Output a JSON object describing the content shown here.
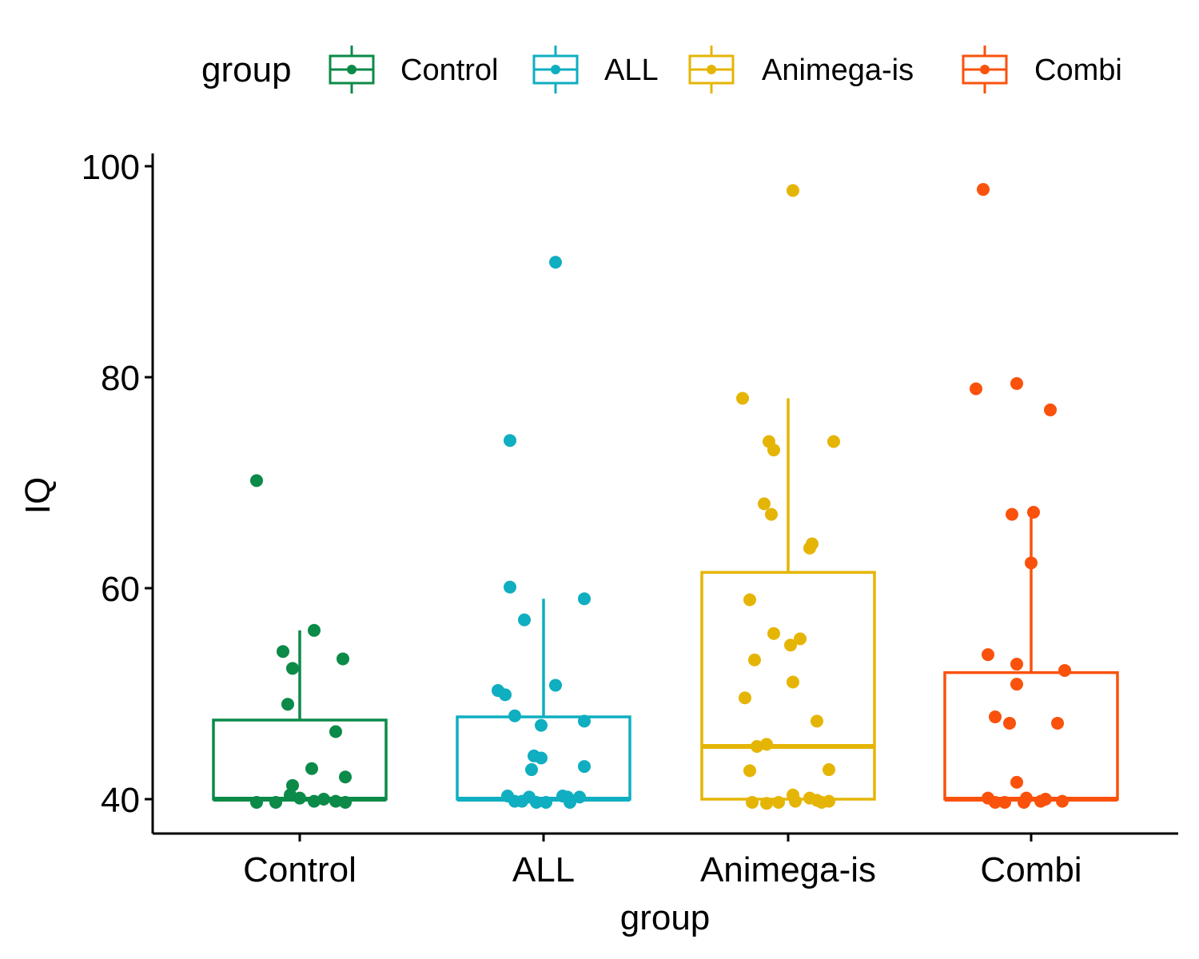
{
  "chart_data": {
    "type": "boxplot",
    "xlabel": "group",
    "ylabel": "IQ",
    "ylim": [
      37,
      101
    ],
    "yticks": [
      40,
      60,
      80,
      100
    ],
    "categories": [
      "Control",
      "ALL",
      "Animega-is",
      "Combi"
    ],
    "legend": {
      "title": "group",
      "position": "top",
      "entries": [
        "Control",
        "ALL",
        "Animega-is",
        "Combi"
      ]
    },
    "grid": false,
    "series": [
      {
        "name": "Control",
        "color": "#0B8A48",
        "box": {
          "q1": 40,
          "median": 40,
          "q3": 47.5,
          "whisker_low": 40,
          "whisker_high": 56
        },
        "points": [
          {
            "jitter": -0.18,
            "y": 70.2
          },
          {
            "jitter": 0.06,
            "y": 56.0
          },
          {
            "jitter": -0.07,
            "y": 54.0
          },
          {
            "jitter": 0.18,
            "y": 53.3
          },
          {
            "jitter": -0.03,
            "y": 52.4
          },
          {
            "jitter": -0.05,
            "y": 49.0
          },
          {
            "jitter": 0.15,
            "y": 46.4
          },
          {
            "jitter": 0.05,
            "y": 42.9
          },
          {
            "jitter": 0.19,
            "y": 42.1
          },
          {
            "jitter": -0.03,
            "y": 41.3
          },
          {
            "jitter": -0.04,
            "y": 40.4
          },
          {
            "jitter": 0.0,
            "y": 40.1
          },
          {
            "jitter": 0.1,
            "y": 40.0
          },
          {
            "jitter": -0.18,
            "y": 39.7
          },
          {
            "jitter": -0.1,
            "y": 39.7
          },
          {
            "jitter": 0.06,
            "y": 39.8
          },
          {
            "jitter": 0.15,
            "y": 39.8
          },
          {
            "jitter": 0.19,
            "y": 39.7
          }
        ]
      },
      {
        "name": "ALL",
        "color": "#0FAEC0",
        "box": {
          "q1": 40,
          "median": 40,
          "q3": 47.8,
          "whisker_low": 40,
          "whisker_high": 59
        },
        "points": [
          {
            "jitter": 0.05,
            "y": 90.9
          },
          {
            "jitter": -0.14,
            "y": 74.0
          },
          {
            "jitter": -0.14,
            "y": 60.1
          },
          {
            "jitter": 0.17,
            "y": 59.0
          },
          {
            "jitter": -0.08,
            "y": 57.0
          },
          {
            "jitter": 0.05,
            "y": 50.8
          },
          {
            "jitter": -0.19,
            "y": 50.3
          },
          {
            "jitter": -0.16,
            "y": 49.9
          },
          {
            "jitter": -0.12,
            "y": 47.9
          },
          {
            "jitter": 0.17,
            "y": 47.4
          },
          {
            "jitter": -0.01,
            "y": 47.0
          },
          {
            "jitter": -0.04,
            "y": 44.1
          },
          {
            "jitter": -0.01,
            "y": 43.9
          },
          {
            "jitter": 0.17,
            "y": 43.1
          },
          {
            "jitter": -0.05,
            "y": 42.8
          },
          {
            "jitter": -0.15,
            "y": 40.3
          },
          {
            "jitter": -0.06,
            "y": 40.2
          },
          {
            "jitter": 0.08,
            "y": 40.3
          },
          {
            "jitter": 0.1,
            "y": 40.2
          },
          {
            "jitter": 0.15,
            "y": 40.2
          },
          {
            "jitter": -0.12,
            "y": 39.8
          },
          {
            "jitter": -0.09,
            "y": 39.8
          },
          {
            "jitter": -0.03,
            "y": 39.7
          },
          {
            "jitter": 0.01,
            "y": 39.7
          },
          {
            "jitter": 0.11,
            "y": 39.7
          }
        ]
      },
      {
        "name": "Animega-is",
        "color": "#E5B505",
        "box": {
          "q1": 40,
          "median": 45,
          "q3": 61.5,
          "whisker_low": 40,
          "whisker_high": 78
        },
        "points": [
          {
            "jitter": 0.02,
            "y": 97.7
          },
          {
            "jitter": -0.19,
            "y": 78.0
          },
          {
            "jitter": -0.08,
            "y": 73.9
          },
          {
            "jitter": -0.06,
            "y": 73.1
          },
          {
            "jitter": 0.19,
            "y": 73.9
          },
          {
            "jitter": -0.1,
            "y": 68.0
          },
          {
            "jitter": -0.07,
            "y": 67.0
          },
          {
            "jitter": 0.1,
            "y": 64.2
          },
          {
            "jitter": 0.09,
            "y": 63.8
          },
          {
            "jitter": -0.16,
            "y": 58.9
          },
          {
            "jitter": -0.06,
            "y": 55.7
          },
          {
            "jitter": 0.05,
            "y": 55.2
          },
          {
            "jitter": 0.01,
            "y": 54.6
          },
          {
            "jitter": -0.14,
            "y": 53.2
          },
          {
            "jitter": 0.02,
            "y": 51.1
          },
          {
            "jitter": -0.18,
            "y": 49.6
          },
          {
            "jitter": 0.12,
            "y": 47.4
          },
          {
            "jitter": -0.09,
            "y": 45.2
          },
          {
            "jitter": -0.13,
            "y": 45.0
          },
          {
            "jitter": -0.16,
            "y": 42.7
          },
          {
            "jitter": 0.17,
            "y": 42.8
          },
          {
            "jitter": 0.02,
            "y": 40.4
          },
          {
            "jitter": 0.09,
            "y": 40.1
          },
          {
            "jitter": 0.03,
            "y": 39.8
          },
          {
            "jitter": -0.15,
            "y": 39.7
          },
          {
            "jitter": -0.09,
            "y": 39.6
          },
          {
            "jitter": -0.04,
            "y": 39.7
          },
          {
            "jitter": 0.12,
            "y": 39.9
          },
          {
            "jitter": 0.14,
            "y": 39.7
          },
          {
            "jitter": 0.17,
            "y": 39.8
          }
        ]
      },
      {
        "name": "Combi",
        "color": "#FA520C",
        "box": {
          "q1": 40,
          "median": 40,
          "q3": 52,
          "whisker_low": 40,
          "whisker_high": 67
        },
        "points": [
          {
            "jitter": -0.2,
            "y": 97.8
          },
          {
            "jitter": -0.23,
            "y": 78.9
          },
          {
            "jitter": -0.06,
            "y": 79.4
          },
          {
            "jitter": 0.08,
            "y": 76.9
          },
          {
            "jitter": -0.08,
            "y": 67.0
          },
          {
            "jitter": 0.01,
            "y": 67.2
          },
          {
            "jitter": 0.0,
            "y": 62.4
          },
          {
            "jitter": -0.18,
            "y": 53.7
          },
          {
            "jitter": -0.06,
            "y": 52.8
          },
          {
            "jitter": 0.14,
            "y": 52.2
          },
          {
            "jitter": -0.06,
            "y": 50.9
          },
          {
            "jitter": -0.15,
            "y": 47.8
          },
          {
            "jitter": -0.09,
            "y": 47.2
          },
          {
            "jitter": 0.11,
            "y": 47.2
          },
          {
            "jitter": -0.06,
            "y": 41.6
          },
          {
            "jitter": -0.18,
            "y": 40.1
          },
          {
            "jitter": -0.02,
            "y": 40.1
          },
          {
            "jitter": 0.06,
            "y": 40.0
          },
          {
            "jitter": -0.15,
            "y": 39.7
          },
          {
            "jitter": -0.11,
            "y": 39.7
          },
          {
            "jitter": -0.03,
            "y": 39.7
          },
          {
            "jitter": 0.04,
            "y": 39.8
          },
          {
            "jitter": 0.13,
            "y": 39.8
          }
        ]
      }
    ]
  }
}
